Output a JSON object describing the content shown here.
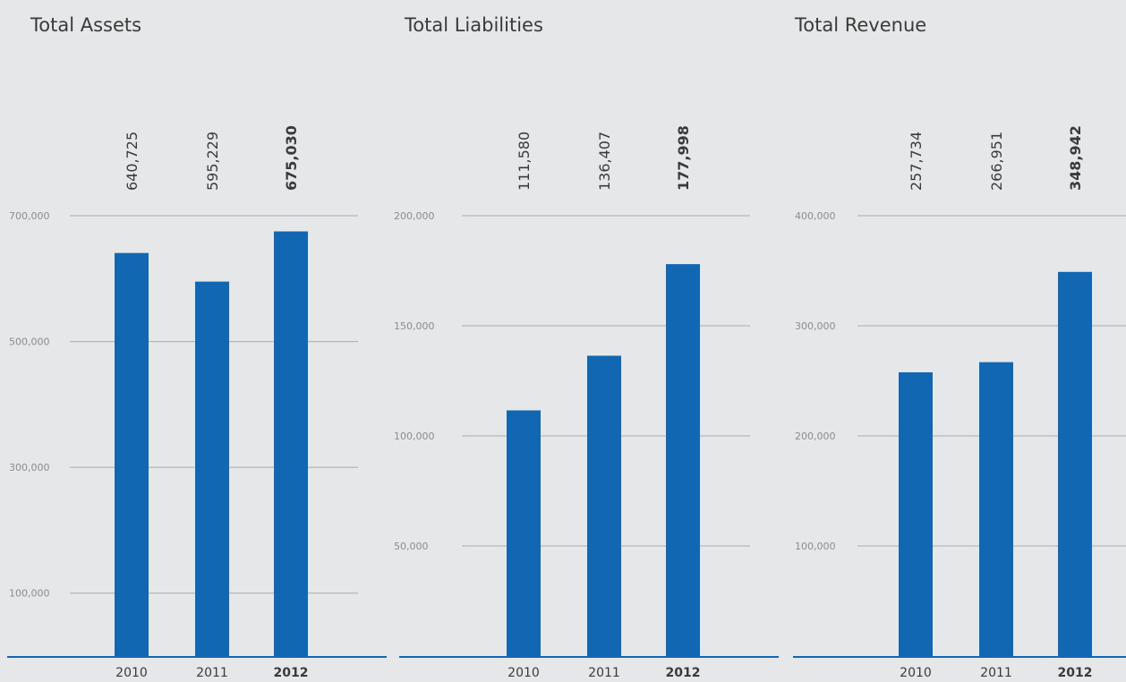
{
  "chart_data": [
    {
      "type": "bar",
      "title": "Total Assets",
      "categories": [
        "2010",
        "2011",
        "2012"
      ],
      "highlight_category": "2012",
      "values": [
        640725,
        595229,
        675030
      ],
      "value_labels": [
        "640,725",
        "595,229",
        "675,030"
      ],
      "y_ticks": [
        100000,
        300000,
        500000,
        700000
      ],
      "y_tick_labels": [
        "100,000",
        "300,000",
        "500,000",
        "700,000"
      ],
      "xlabel": "",
      "ylabel": "",
      "grid": true
    },
    {
      "type": "bar",
      "title": "Total Liabilities",
      "categories": [
        "2010",
        "2011",
        "2012"
      ],
      "highlight_category": "2012",
      "values": [
        111580,
        136407,
        177998
      ],
      "value_labels": [
        "111,580",
        "136,407",
        "177,998"
      ],
      "y_ticks": [
        50000,
        100000,
        150000,
        200000
      ],
      "y_tick_labels": [
        "50,000",
        "100,000",
        "150,000",
        "200,000"
      ],
      "xlabel": "",
      "ylabel": "",
      "grid": true
    },
    {
      "type": "bar",
      "title": "Total Revenue",
      "categories": [
        "2010",
        "2011",
        "2012"
      ],
      "highlight_category": "2012",
      "values": [
        257734,
        266951,
        348942
      ],
      "value_labels": [
        "257,734",
        "266,951",
        "348,942"
      ],
      "y_ticks": [
        100000,
        200000,
        300000,
        400000
      ],
      "y_tick_labels": [
        "100,000",
        "200,000",
        "300,000",
        "400,000"
      ],
      "xlabel": "",
      "ylabel": "",
      "grid": true
    }
  ],
  "colors": {
    "bar": "#1267b2",
    "baseline": "#1267b2",
    "background": "#e6e7e8",
    "gridline": "#a9abad",
    "tick_label": "#8a8c8e",
    "text": "#3a3a3a"
  }
}
